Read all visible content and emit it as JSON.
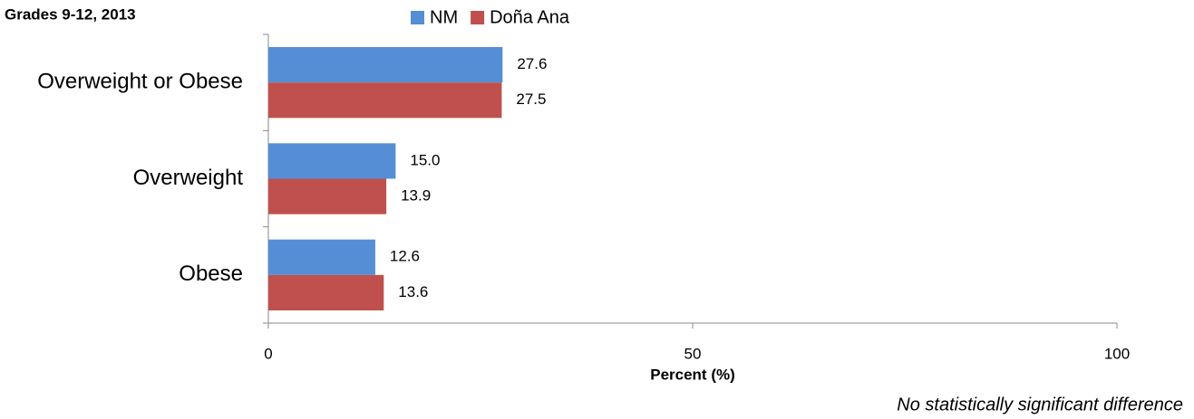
{
  "chart_data": {
    "type": "bar",
    "orientation": "horizontal",
    "title": "Grades 9-12, 2013",
    "categories": [
      "Overweight or Obese",
      "Overweight",
      "Obese"
    ],
    "series": [
      {
        "name": "NM",
        "color": "#558ed5",
        "values": [
          27.6,
          15.0,
          12.6
        ],
        "value_labels": [
          "27.6",
          "15.0",
          "12.6"
        ]
      },
      {
        "name": "Doña Ana",
        "color": "#c0504d",
        "values": [
          27.5,
          13.9,
          13.6
        ],
        "value_labels": [
          "27.5",
          "13.9",
          "13.6"
        ]
      }
    ],
    "xlim": [
      0,
      100
    ],
    "xticks": [
      0,
      50,
      100
    ],
    "xlabel": "Percent (%)",
    "annotation": "No statistically significant difference",
    "legend": "top"
  }
}
